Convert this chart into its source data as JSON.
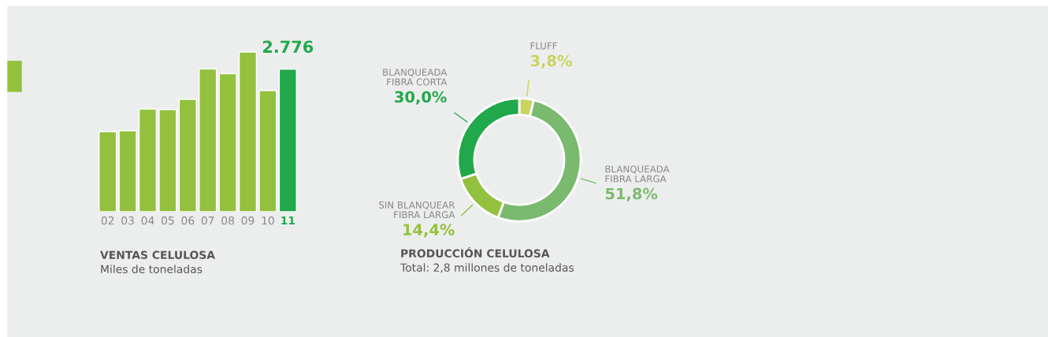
{
  "chart_data": [
    {
      "type": "bar",
      "title": "VENTAS CELULOSA",
      "subtitle": "Miles de toneladas",
      "tick_labels": "x",
      "categories": [
        "02",
        "03",
        "04",
        "05",
        "06",
        "07",
        "08",
        "09",
        "10",
        "11"
      ],
      "values": [
        1560,
        1580,
        2000,
        1990,
        2190,
        2780,
        2690,
        3110,
        2360,
        2776
      ],
      "colors": [
        "#93c13e",
        "#93c13e",
        "#93c13e",
        "#93c13e",
        "#93c13e",
        "#93c13e",
        "#93c13e",
        "#93c13e",
        "#93c13e",
        "#21a84a"
      ],
      "value_labels": [
        null,
        null,
        null,
        null,
        null,
        null,
        null,
        null,
        null,
        "2.776"
      ],
      "grid": false,
      "legend": false
    },
    {
      "type": "donut",
      "title": "PRODUCCIÓN CELULOSA",
      "subtitle": "Total: 2,8 millones de toneladas",
      "categories": [
        "FLUFF",
        "BLANQUEADA\nFIBRA LARGA",
        "SIN BLANQUEAR\nFIBRA LARGA",
        "BLANQUEADA\nFIBRA CORTA"
      ],
      "values": [
        3.8,
        51.8,
        14.4,
        30.0
      ],
      "value_labels": [
        "3,8%",
        "51,8%",
        "14,4%",
        "30,0%"
      ],
      "colors": [
        "#c9d35e",
        "#7aba6e",
        "#93c13e",
        "#21a84a"
      ],
      "legend": false
    }
  ]
}
